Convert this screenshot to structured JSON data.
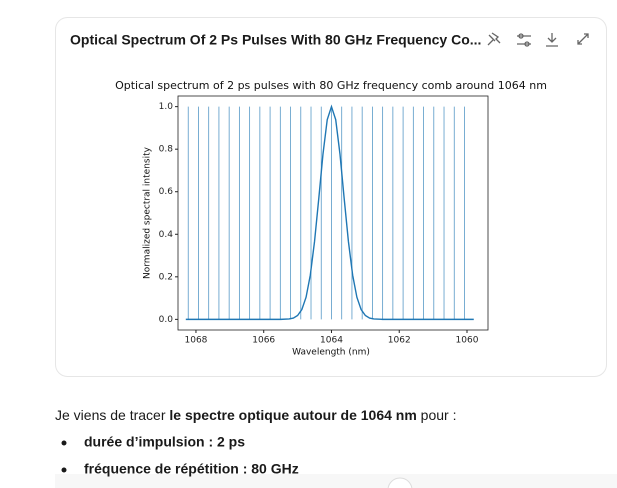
{
  "card": {
    "title": "Optical Spectrum Of 2 Ps Pulses With 80 GHz Frequency Co..."
  },
  "chart_data": {
    "type": "line",
    "title": "Optical spectrum of 2 ps pulses with 80 GHz frequency comb around 1064 nm",
    "x_label": "Wavelength (nm)",
    "y_label": "Normalized spectral intensity",
    "xlim": [
      1068.53,
      1059.38
    ],
    "ylim": [
      -0.05,
      1.05
    ],
    "xticks": [
      1068,
      1066,
      1064,
      1062,
      1060
    ],
    "yticks": [
      {
        "value": 0,
        "label": "0.0"
      },
      0.2,
      0.4,
      0.6,
      0.8,
      {
        "value": 1,
        "label": "1.0"
      }
    ],
    "series": [
      {
        "color": "#1f77b4",
        "style": "line",
        "x": [
          1068.3,
          1066,
          1065.5,
          1065.25,
          1065.125,
          1065,
          1064.875,
          1064.75,
          1064.625,
          1064.5,
          1064.375,
          1064.25,
          1064.125,
          1064,
          1063.875,
          1063.75,
          1063.625,
          1063.5,
          1063.375,
          1063.25,
          1063.125,
          1063,
          1062.875,
          1062.75,
          1062.5,
          1062,
          1059.8
        ],
        "values": [
          0,
          0,
          0,
          0.002,
          0.006,
          0.018,
          0.046,
          0.104,
          0.208,
          0.366,
          0.568,
          0.778,
          0.939,
          1,
          0.939,
          0.778,
          0.568,
          0.366,
          0.208,
          0.104,
          0.046,
          0.018,
          0.006,
          0.002,
          0,
          0,
          0
        ]
      },
      {
        "color": "#1f77b4",
        "style": "vlines",
        "x": [
          1068.228,
          1067.926,
          1067.624,
          1067.322,
          1067.02,
          1066.718,
          1066.416,
          1066.114,
          1065.812,
          1065.51,
          1065.208,
          1064.906,
          1064.604,
          1064.302,
          1064,
          1063.698,
          1063.396,
          1063.094,
          1062.792,
          1062.49,
          1062.188,
          1061.886,
          1061.584,
          1061.282,
          1060.98,
          1060.678,
          1060.376,
          1060.074
        ],
        "values": [
          1,
          1,
          1,
          1,
          1,
          1,
          1,
          1,
          1,
          1,
          1,
          1,
          1,
          1,
          1,
          1,
          1,
          1,
          1,
          1,
          1,
          1,
          1,
          1,
          1,
          1,
          1,
          1
        ]
      }
    ]
  },
  "message": {
    "intro": [
      "Je viens de tracer ",
      "le spectre optique autour de 1064 nm",
      " pour :"
    ],
    "bullets": [
      "durée d’impulsion : 2 ps",
      "fréquence de répétition : 80 GHz"
    ]
  }
}
